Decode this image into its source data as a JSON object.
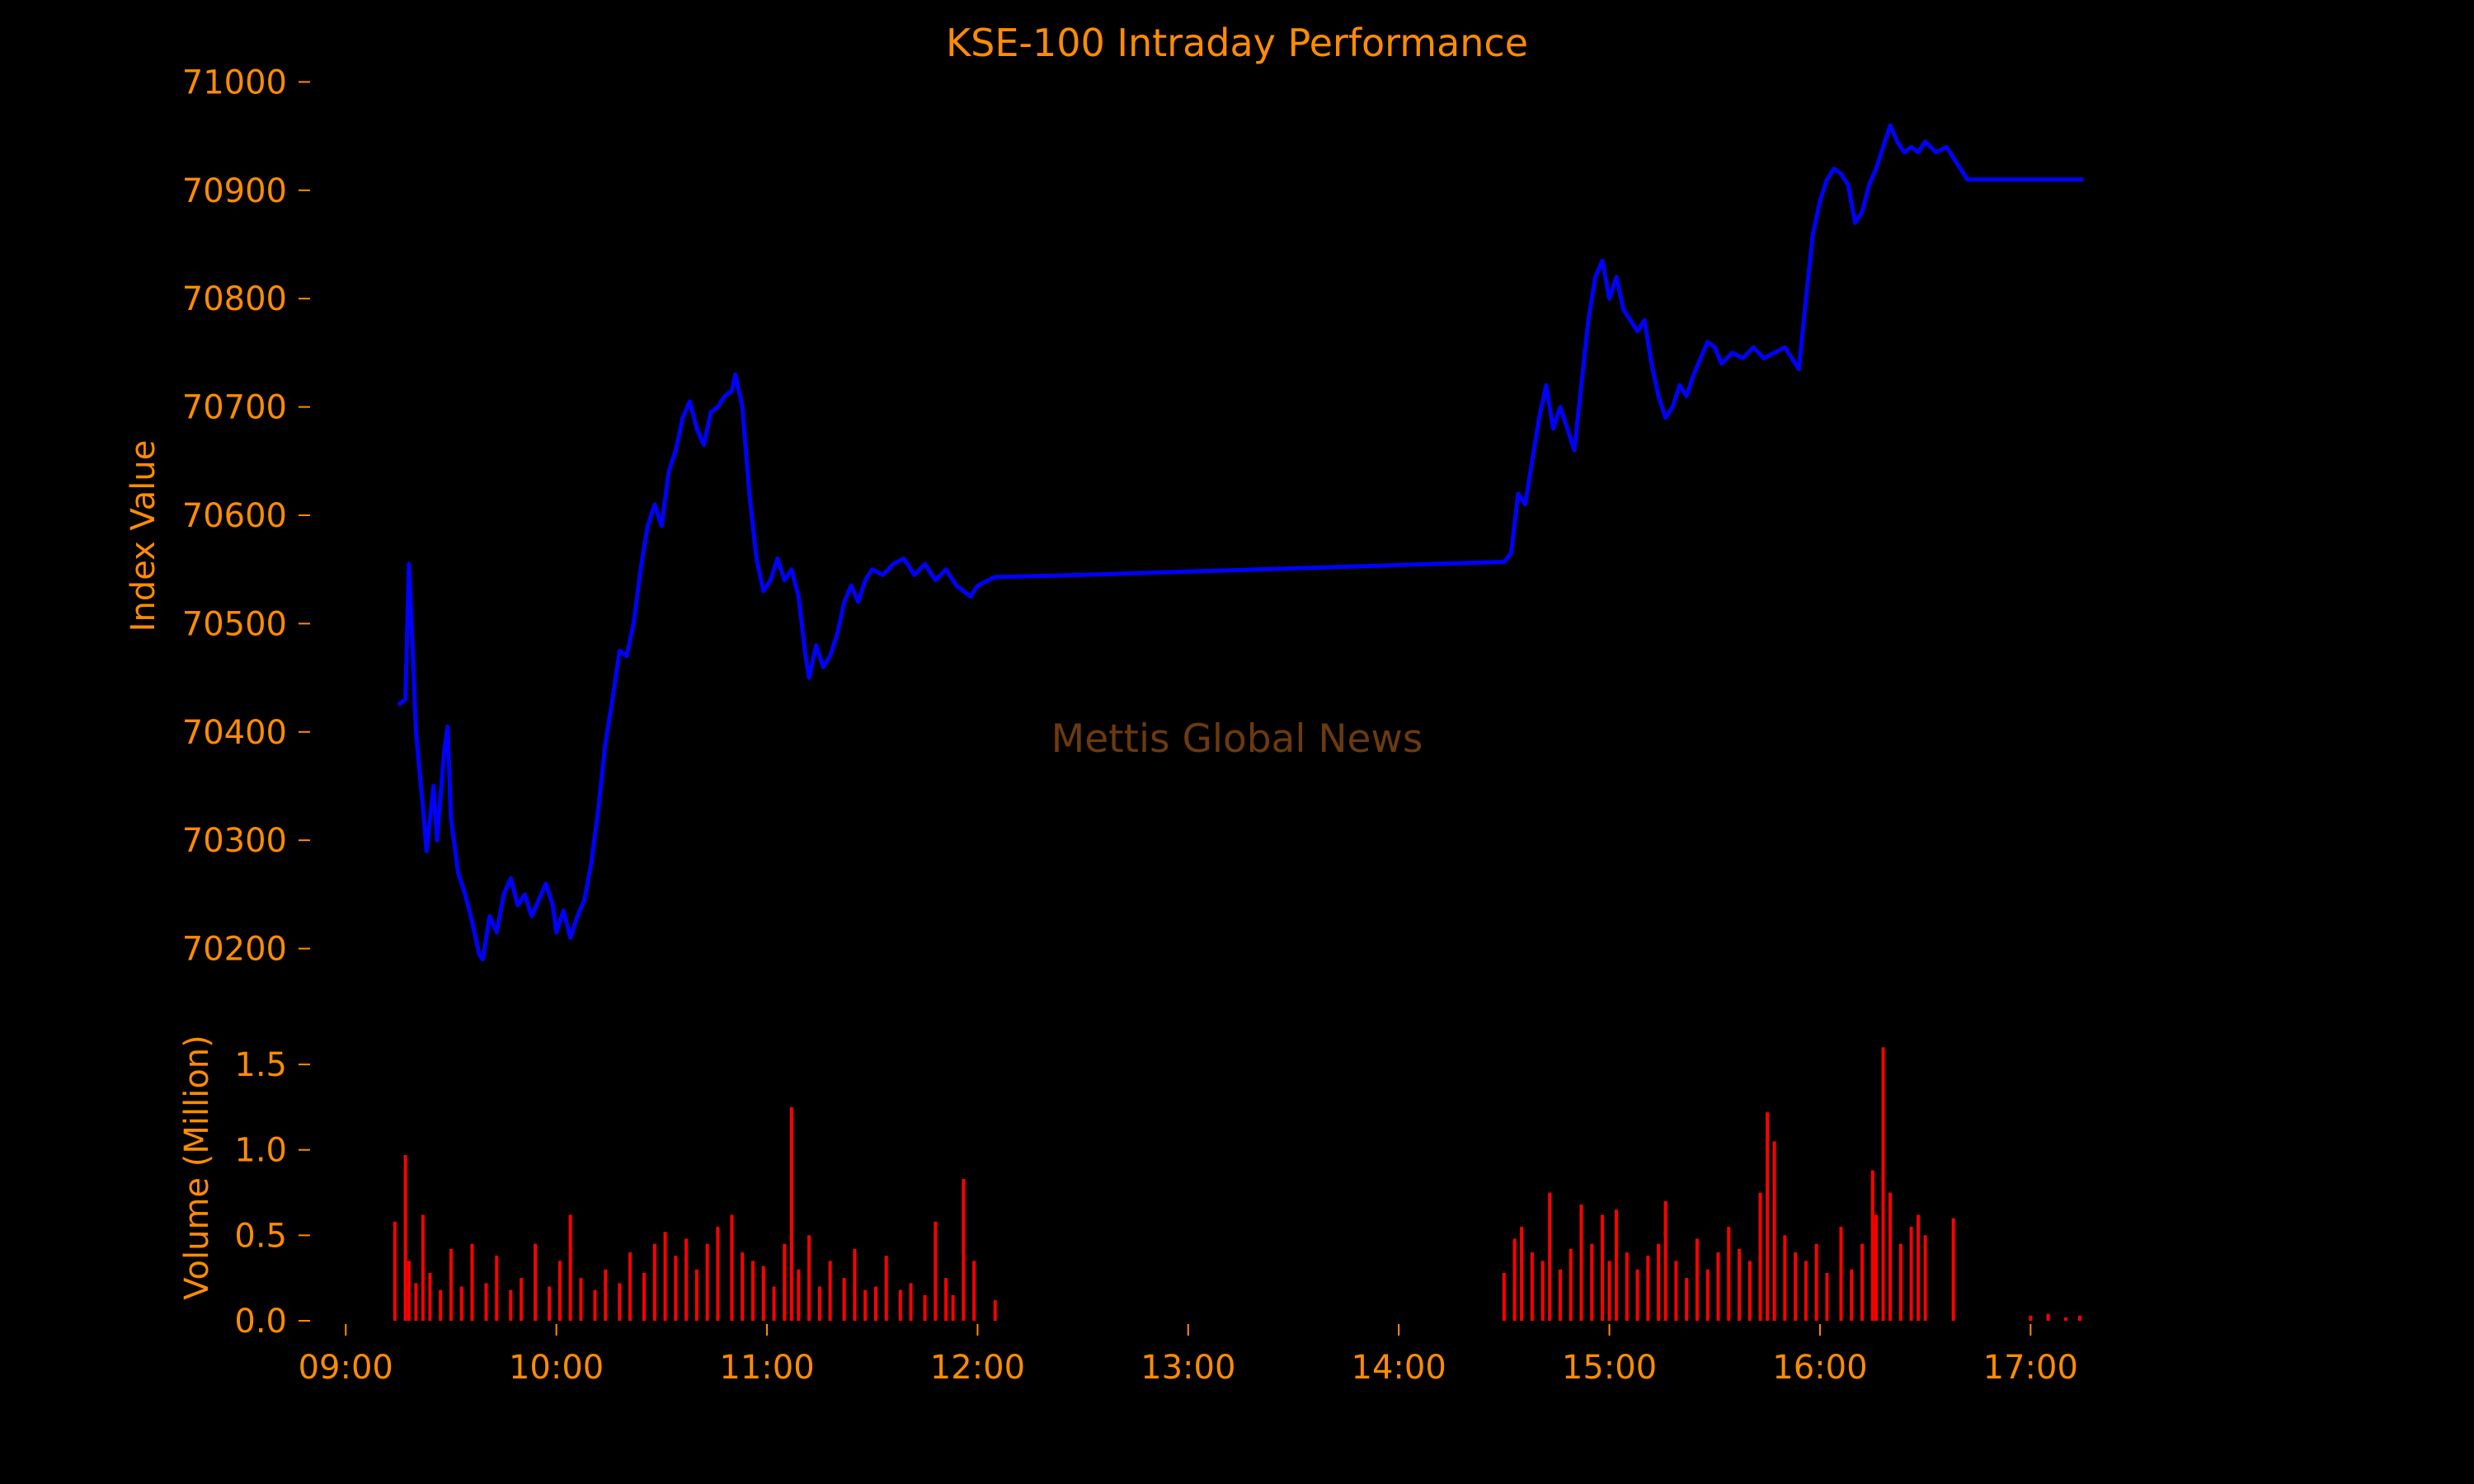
{
  "colors": {
    "background": "#000000",
    "text": "#ff8c00",
    "line": "#0000ff",
    "volume": "#ff0000",
    "watermark": "#6b3a0e"
  },
  "watermark": "Mettis Global News",
  "chart_data": [
    {
      "type": "line",
      "title": "KSE-100 Intraday Performance",
      "ylabel": "Index Value",
      "xlabel": "",
      "ylim": [
        70170,
        71030
      ],
      "yticks": [
        70200,
        70300,
        70400,
        70500,
        70600,
        70700,
        70800,
        70900,
        71000
      ],
      "grid": false,
      "series": [
        {
          "points": [
            [
              "09:15",
              70425
            ],
            [
              "09:17",
              70430
            ],
            [
              "09:18",
              70555
            ],
            [
              "09:19",
              70480
            ],
            [
              "09:20",
              70400
            ],
            [
              "09:22",
              70330
            ],
            [
              "09:23",
              70290
            ],
            [
              "09:25",
              70350
            ],
            [
              "09:26",
              70300
            ],
            [
              "09:28",
              70380
            ],
            [
              "09:29",
              70405
            ],
            [
              "09:30",
              70320
            ],
            [
              "09:32",
              70270
            ],
            [
              "09:34",
              70250
            ],
            [
              "09:36",
              70225
            ],
            [
              "09:38",
              70195
            ],
            [
              "09:39",
              70190
            ],
            [
              "09:41",
              70230
            ],
            [
              "09:43",
              70215
            ],
            [
              "09:45",
              70250
            ],
            [
              "09:47",
              70265
            ],
            [
              "09:49",
              70240
            ],
            [
              "09:51",
              70250
            ],
            [
              "09:53",
              70230
            ],
            [
              "09:55",
              70245
            ],
            [
              "09:57",
              70260
            ],
            [
              "09:59",
              70240
            ],
            [
              "10:00",
              70215
            ],
            [
              "10:02",
              70235
            ],
            [
              "10:04",
              70210
            ],
            [
              "10:06",
              70230
            ],
            [
              "10:08",
              70245
            ],
            [
              "10:10",
              70280
            ],
            [
              "10:12",
              70330
            ],
            [
              "10:14",
              70390
            ],
            [
              "10:16",
              70430
            ],
            [
              "10:18",
              70475
            ],
            [
              "10:20",
              70470
            ],
            [
              "10:22",
              70500
            ],
            [
              "10:24",
              70550
            ],
            [
              "10:26",
              70590
            ],
            [
              "10:28",
              70610
            ],
            [
              "10:30",
              70590
            ],
            [
              "10:32",
              70640
            ],
            [
              "10:34",
              70660
            ],
            [
              "10:36",
              70690
            ],
            [
              "10:38",
              70705
            ],
            [
              "10:40",
              70680
            ],
            [
              "10:42",
              70665
            ],
            [
              "10:44",
              70695
            ],
            [
              "10:46",
              70700
            ],
            [
              "10:48",
              70710
            ],
            [
              "10:50",
              70715
            ],
            [
              "10:51",
              70730
            ],
            [
              "10:53",
              70700
            ],
            [
              "10:55",
              70620
            ],
            [
              "10:57",
              70560
            ],
            [
              "10:59",
              70530
            ],
            [
              "11:01",
              70540
            ],
            [
              "11:03",
              70560
            ],
            [
              "11:05",
              70540
            ],
            [
              "11:07",
              70550
            ],
            [
              "11:09",
              70525
            ],
            [
              "11:11",
              70470
            ],
            [
              "11:12",
              70450
            ],
            [
              "11:14",
              70480
            ],
            [
              "11:16",
              70460
            ],
            [
              "11:18",
              70470
            ],
            [
              "11:20",
              70490
            ],
            [
              "11:22",
              70520
            ],
            [
              "11:24",
              70535
            ],
            [
              "11:26",
              70520
            ],
            [
              "11:28",
              70540
            ],
            [
              "11:30",
              70550
            ],
            [
              "11:33",
              70545
            ],
            [
              "11:36",
              70555
            ],
            [
              "11:39",
              70560
            ],
            [
              "11:42",
              70545
            ],
            [
              "11:45",
              70555
            ],
            [
              "11:48",
              70540
            ],
            [
              "11:51",
              70550
            ],
            [
              "11:54",
              70535
            ],
            [
              "11:56",
              70530
            ],
            [
              "11:58",
              70525
            ],
            [
              "12:00",
              70535
            ],
            [
              "12:05",
              70543
            ],
            [
              "12:30",
              70545
            ],
            [
              "13:00",
              70548
            ],
            [
              "13:30",
              70551
            ],
            [
              "14:00",
              70554
            ],
            [
              "14:30",
              70557
            ],
            [
              "14:32",
              70565
            ],
            [
              "14:34",
              70620
            ],
            [
              "14:36",
              70610
            ],
            [
              "14:38",
              70650
            ],
            [
              "14:40",
              70690
            ],
            [
              "14:42",
              70720
            ],
            [
              "14:44",
              70680
            ],
            [
              "14:46",
              70700
            ],
            [
              "14:48",
              70680
            ],
            [
              "14:50",
              70660
            ],
            [
              "14:52",
              70720
            ],
            [
              "14:54",
              70780
            ],
            [
              "14:56",
              70820
            ],
            [
              "14:58",
              70835
            ],
            [
              "15:00",
              70800
            ],
            [
              "15:02",
              70820
            ],
            [
              "15:04",
              70790
            ],
            [
              "15:06",
              70780
            ],
            [
              "15:08",
              70770
            ],
            [
              "15:10",
              70780
            ],
            [
              "15:12",
              70740
            ],
            [
              "15:14",
              70710
            ],
            [
              "15:16",
              70690
            ],
            [
              "15:18",
              70700
            ],
            [
              "15:20",
              70720
            ],
            [
              "15:22",
              70710
            ],
            [
              "15:24",
              70730
            ],
            [
              "15:26",
              70745
            ],
            [
              "15:28",
              70760
            ],
            [
              "15:30",
              70755
            ],
            [
              "15:32",
              70740
            ],
            [
              "15:35",
              70750
            ],
            [
              "15:38",
              70745
            ],
            [
              "15:41",
              70755
            ],
            [
              "15:44",
              70745
            ],
            [
              "15:47",
              70750
            ],
            [
              "15:50",
              70755
            ],
            [
              "15:52",
              70745
            ],
            [
              "15:54",
              70735
            ],
            [
              "15:56",
              70800
            ],
            [
              "15:58",
              70860
            ],
            [
              "16:00",
              70890
            ],
            [
              "16:02",
              70910
            ],
            [
              "16:04",
              70920
            ],
            [
              "16:06",
              70915
            ],
            [
              "16:08",
              70905
            ],
            [
              "16:10",
              70870
            ],
            [
              "16:12",
              70880
            ],
            [
              "16:14",
              70905
            ],
            [
              "16:16",
              70920
            ],
            [
              "16:18",
              70940
            ],
            [
              "16:20",
              70960
            ],
            [
              "16:22",
              70945
            ],
            [
              "16:24",
              70935
            ],
            [
              "16:26",
              70940
            ],
            [
              "16:28",
              70935
            ],
            [
              "16:30",
              70945
            ],
            [
              "16:33",
              70935
            ],
            [
              "16:36",
              70940
            ],
            [
              "16:42",
              70910
            ],
            [
              "17:00",
              70910
            ],
            [
              "17:15",
              70910
            ]
          ]
        }
      ]
    },
    {
      "type": "bar",
      "ylabel": "Volume (Million)",
      "xlabel": "",
      "ylim": [
        0,
        1.65
      ],
      "yticks": [
        "0.0",
        "0.5",
        "1.0",
        "1.5"
      ],
      "xticks": [
        "09:00",
        "10:00",
        "11:00",
        "12:00",
        "13:00",
        "14:00",
        "15:00",
        "16:00",
        "17:00"
      ],
      "xlim": [
        "08:59",
        "17:30"
      ],
      "grid": false,
      "series": [
        {
          "points": [
            [
              "09:14",
              0.58
            ],
            [
              "09:17",
              0.97
            ],
            [
              "09:18",
              0.35
            ],
            [
              "09:20",
              0.22
            ],
            [
              "09:22",
              0.62
            ],
            [
              "09:24",
              0.28
            ],
            [
              "09:27",
              0.18
            ],
            [
              "09:30",
              0.42
            ],
            [
              "09:33",
              0.2
            ],
            [
              "09:36",
              0.45
            ],
            [
              "09:40",
              0.22
            ],
            [
              "09:43",
              0.38
            ],
            [
              "09:47",
              0.18
            ],
            [
              "09:50",
              0.25
            ],
            [
              "09:54",
              0.45
            ],
            [
              "09:58",
              0.2
            ],
            [
              "10:01",
              0.35
            ],
            [
              "10:04",
              0.62
            ],
            [
              "10:07",
              0.25
            ],
            [
              "10:11",
              0.18
            ],
            [
              "10:14",
              0.3
            ],
            [
              "10:18",
              0.22
            ],
            [
              "10:21",
              0.4
            ],
            [
              "10:25",
              0.28
            ],
            [
              "10:28",
              0.45
            ],
            [
              "10:31",
              0.52
            ],
            [
              "10:34",
              0.38
            ],
            [
              "10:37",
              0.48
            ],
            [
              "10:40",
              0.3
            ],
            [
              "10:43",
              0.45
            ],
            [
              "10:46",
              0.55
            ],
            [
              "10:50",
              0.62
            ],
            [
              "10:53",
              0.4
            ],
            [
              "10:56",
              0.35
            ],
            [
              "10:59",
              0.32
            ],
            [
              "11:02",
              0.2
            ],
            [
              "11:05",
              0.45
            ],
            [
              "11:07",
              1.25
            ],
            [
              "11:09",
              0.3
            ],
            [
              "11:12",
              0.5
            ],
            [
              "11:15",
              0.2
            ],
            [
              "11:18",
              0.35
            ],
            [
              "11:22",
              0.25
            ],
            [
              "11:25",
              0.42
            ],
            [
              "11:28",
              0.18
            ],
            [
              "11:31",
              0.2
            ],
            [
              "11:34",
              0.38
            ],
            [
              "11:38",
              0.18
            ],
            [
              "11:41",
              0.22
            ],
            [
              "11:45",
              0.15
            ],
            [
              "11:48",
              0.58
            ],
            [
              "11:51",
              0.25
            ],
            [
              "11:53",
              0.15
            ],
            [
              "11:56",
              0.83
            ],
            [
              "11:59",
              0.35
            ],
            [
              "12:05",
              0.12
            ],
            [
              "14:30",
              0.28
            ],
            [
              "14:33",
              0.48
            ],
            [
              "14:35",
              0.55
            ],
            [
              "14:38",
              0.4
            ],
            [
              "14:41",
              0.35
            ],
            [
              "14:43",
              0.75
            ],
            [
              "14:46",
              0.3
            ],
            [
              "14:49",
              0.42
            ],
            [
              "14:52",
              0.68
            ],
            [
              "14:55",
              0.45
            ],
            [
              "14:58",
              0.62
            ],
            [
              "15:00",
              0.35
            ],
            [
              "15:02",
              0.65
            ],
            [
              "15:05",
              0.4
            ],
            [
              "15:08",
              0.3
            ],
            [
              "15:11",
              0.38
            ],
            [
              "15:14",
              0.45
            ],
            [
              "15:16",
              0.7
            ],
            [
              "15:19",
              0.35
            ],
            [
              "15:22",
              0.25
            ],
            [
              "15:25",
              0.48
            ],
            [
              "15:28",
              0.3
            ],
            [
              "15:31",
              0.4
            ],
            [
              "15:34",
              0.55
            ],
            [
              "15:37",
              0.42
            ],
            [
              "15:40",
              0.35
            ],
            [
              "15:43",
              0.75
            ],
            [
              "15:45",
              1.22
            ],
            [
              "15:47",
              1.05
            ],
            [
              "15:50",
              0.5
            ],
            [
              "15:53",
              0.4
            ],
            [
              "15:56",
              0.35
            ],
            [
              "15:59",
              0.45
            ],
            [
              "16:02",
              0.28
            ],
            [
              "16:06",
              0.55
            ],
            [
              "16:09",
              0.3
            ],
            [
              "16:12",
              0.45
            ],
            [
              "16:15",
              0.88
            ],
            [
              "16:16",
              0.62
            ],
            [
              "16:18",
              1.6
            ],
            [
              "16:20",
              0.75
            ],
            [
              "16:23",
              0.45
            ],
            [
              "16:26",
              0.55
            ],
            [
              "16:28",
              0.62
            ],
            [
              "16:30",
              0.5
            ],
            [
              "16:38",
              0.6
            ],
            [
              "17:00",
              0.03
            ],
            [
              "17:05",
              0.04
            ],
            [
              "17:10",
              0.02
            ],
            [
              "17:14",
              0.03
            ]
          ]
        }
      ]
    }
  ]
}
